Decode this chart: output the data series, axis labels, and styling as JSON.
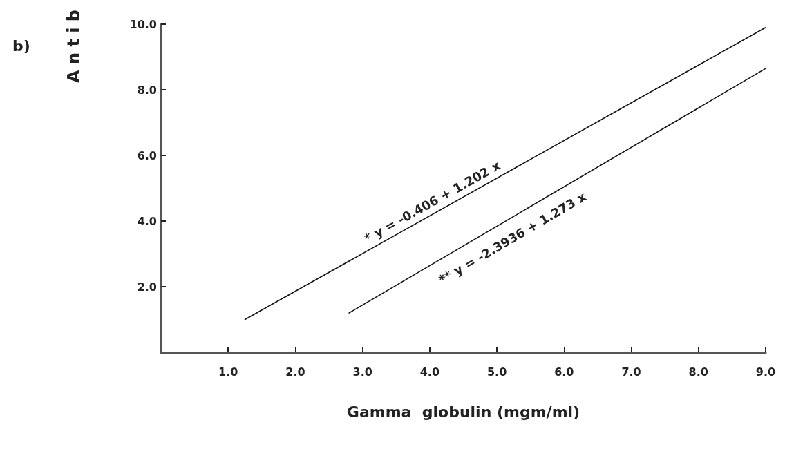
{
  "chart_data": {
    "type": "line",
    "xlabel": "Gamma  globulin (mgm/ml)",
    "ylabel": "A n t i b",
    "series": [
      {
        "color": "#111111",
        "x": [
          1.25,
          9.0
        ],
        "values": [
          1.0,
          9.9
        ]
      },
      {
        "color": "#111111",
        "x": [
          2.8,
          9.0
        ],
        "values": [
          1.2,
          8.65
        ]
      }
    ],
    "xlim": [
      0,
      9
    ],
    "xticks": [
      {
        "value": 1,
        "label": "1.0"
      },
      {
        "value": 2,
        "label": "2.0"
      },
      {
        "value": 3,
        "label": "3.0"
      },
      {
        "value": 4,
        "label": "4.0"
      },
      {
        "value": 5,
        "label": "5.0"
      },
      {
        "value": 6,
        "label": "6.0"
      },
      {
        "value": 7,
        "label": "7.0"
      },
      {
        "value": 8,
        "label": "8.0"
      },
      {
        "value": 9,
        "label": "9.0"
      }
    ],
    "ylim": [
      0,
      10
    ],
    "yticks": [
      {
        "value": 2,
        "label": "2.0"
      },
      {
        "value": 4,
        "label": "4.0"
      },
      {
        "value": 6,
        "label": "6.0"
      },
      {
        "value": 8,
        "label": "8.0"
      },
      {
        "value": 10,
        "label": "10.0"
      }
    ],
    "annotations": [
      "b)",
      "* y = -0.406 + 1.202 x",
      "** y = -2.3936 + 1.273 x"
    ],
    "grid": false,
    "marker": "none",
    "line_style": "solid"
  }
}
